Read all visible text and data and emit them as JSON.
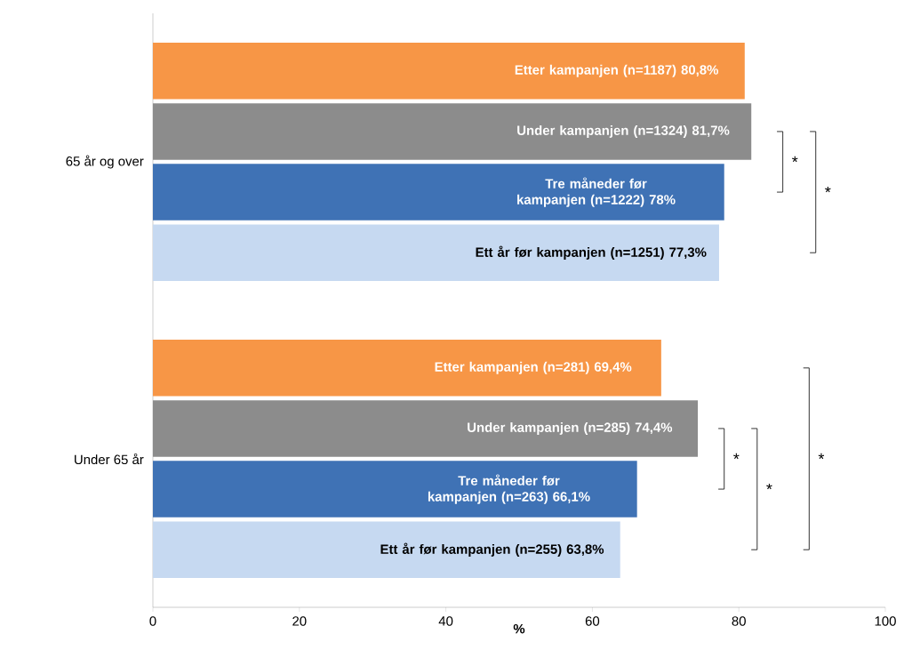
{
  "chart_data": {
    "type": "bar",
    "orientation": "horizontal",
    "categories": [
      "65 år og over",
      "Under 65 år"
    ],
    "xlabel": "%",
    "xlim": [
      0,
      100
    ],
    "xticks": [
      0,
      20,
      40,
      60,
      80,
      100
    ],
    "grid": false,
    "series": [
      {
        "color": "#f79646",
        "values": [
          80.8,
          69.4
        ],
        "value_labels": [
          "Etter kampanjen (n=1187) 80,8%",
          "Etter kampanjen (n=281) 69,4%"
        ]
      },
      {
        "color": "#8c8c8c",
        "values": [
          81.7,
          74.4
        ],
        "value_labels": [
          "Under kampanjen (n=1324) 81,7%",
          "Under kampanjen (n=285) 74,4%"
        ]
      },
      {
        "color": "#3f72b5",
        "values": [
          78,
          66.1
        ],
        "value_labels": [
          "Tre måneder før kampanjen (n=1222) 78%",
          "Tre måneder før kampanjen (n=263) 66,1%"
        ]
      },
      {
        "color": "#c6d9f1",
        "values": [
          77.3,
          63.8
        ],
        "value_labels": [
          "Ett år før kampanjen (n=1251) 77,3%",
          "Ett år før kampanjen (n=255) 63,8%"
        ]
      }
    ],
    "annotations": [
      "*",
      "*",
      "*",
      "*",
      "*"
    ]
  }
}
